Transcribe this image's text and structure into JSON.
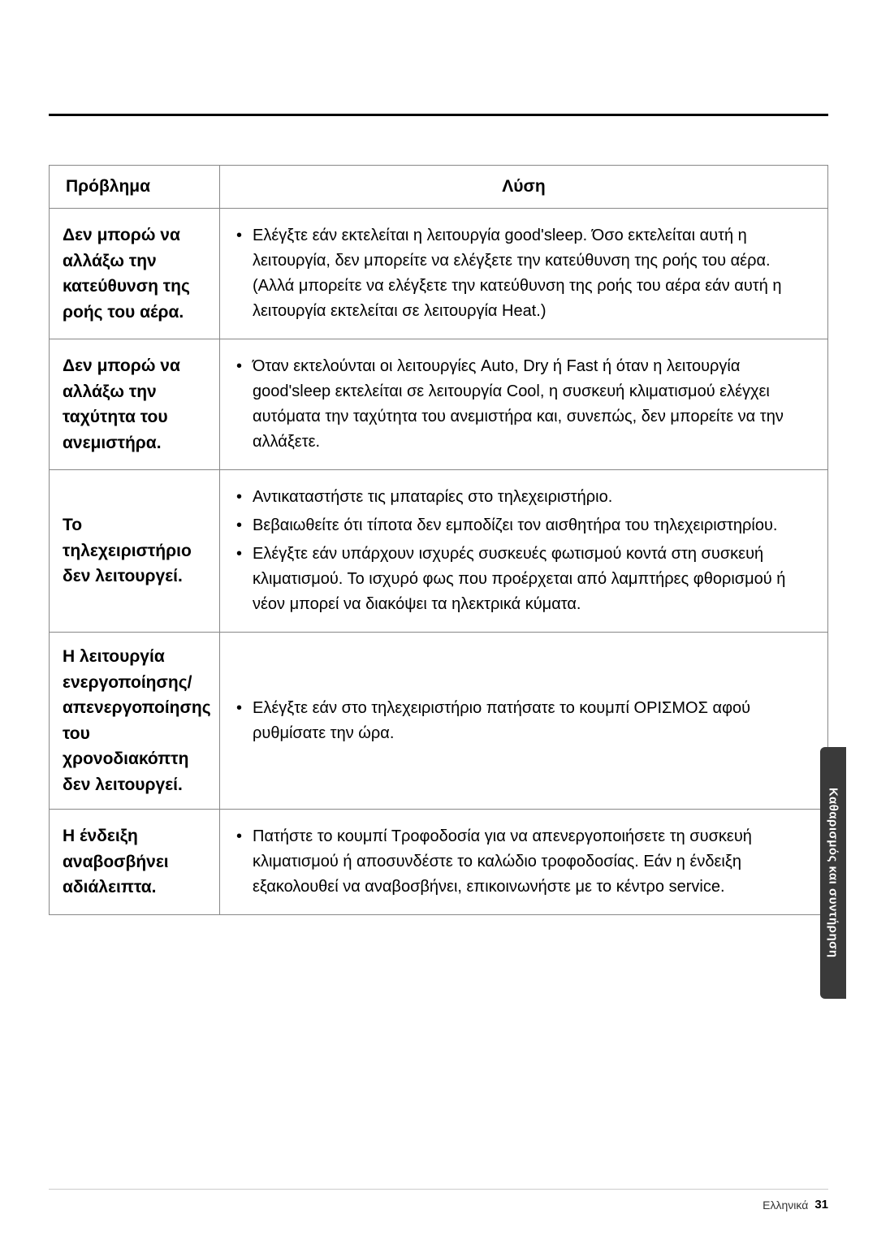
{
  "headers": {
    "problem": "Πρόβλημα",
    "solution": "Λύση"
  },
  "rows": [
    {
      "problem": "Δεν μπορώ να αλλάξω την κατεύθυνση της ροής του αέρα.",
      "solutions": [
        "Ελέγξτε εάν εκτελείται η λειτουργία good'sleep. Όσο εκτελείται αυτή η λειτουργία, δεν μπορείτε να ελέγξετε την κατεύθυνση της ροής του αέρα. (Αλλά μπορείτε να ελέγξετε την κατεύθυνση της ροής του αέρα εάν αυτή η λειτουργία εκτελείται σε λειτουργία Heat.)"
      ]
    },
    {
      "problem": "Δεν μπορώ να αλλάξω την ταχύτητα του ανεμιστήρα.",
      "solutions": [
        "Όταν εκτελούνται οι λειτουργίες Auto, Dry ή Fast ή όταν η λειτουργία good'sleep εκτελείται σε λειτουργία Cool, η συσκευή κλιματισμού ελέγχει αυτόματα την ταχύτητα του ανεμιστήρα και, συνεπώς, δεν μπορείτε να την αλλάξετε."
      ]
    },
    {
      "problem": "Το τηλεχειριστήριο δεν λειτουργεί.",
      "solutions": [
        "Αντικαταστήστε τις μπαταρίες στο τηλεχειριστήριο.",
        "Βεβαιωθείτε ότι τίποτα δεν εμποδίζει τον αισθητήρα του τηλεχειριστηρίου.",
        "Ελέγξτε εάν υπάρχουν ισχυρές συσκευές φωτισμού κοντά στη συσκευή κλιματισμού. Το ισχυρό φως που προέρχεται από λαμπτήρες φθορισμού ή νέον μπορεί να διακόψει τα ηλεκτρικά κύματα."
      ]
    },
    {
      "problem": "Η λειτουργία ενεργοποίησης/ απενεργοποίησης του χρονοδιακόπτη δεν λειτουργεί.",
      "solutions": [
        "Ελέγξτε εάν στο τηλεχειριστήριο πατήσατε το κουμπί ΟΡΙΣΜΟΣ αφού ρυθμίσατε την ώρα."
      ]
    },
    {
      "problem": "Η ένδειξη αναβοσβήνει αδιάλειπτα.",
      "solutions": [
        "Πατήστε το κουμπί Τροφοδοσία για να απενεργοποιήσετε τη συσκευή κλιματισμού ή αποσυνδέστε το καλώδιο τροφοδοσίας. Εάν η ένδειξη εξακολουθεί να αναβοσβήνει, επικοινωνήστε με το κέντρο service."
      ]
    }
  ],
  "sideTab": "Καθαρισμός και συντήρηση",
  "footer": {
    "language": "Ελληνικά",
    "page": "31"
  },
  "colors": {
    "rule": "#000000",
    "border": "#888888",
    "tabBg": "#3a3a3a",
    "tabText": "#ffffff"
  }
}
